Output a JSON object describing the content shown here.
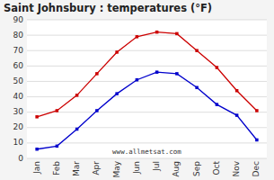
{
  "chart_data": {
    "type": "line",
    "title": "Saint Johnsbury : temperatures (°F)",
    "categories": [
      "Jan",
      "Feb",
      "Mar",
      "Apr",
      "May",
      "Jun",
      "Jul",
      "Aug",
      "Sep",
      "Oct",
      "Nov",
      "Dec"
    ],
    "series": [
      {
        "color": "#cc0000",
        "marker": "square",
        "values": [
          27,
          31,
          41,
          55,
          69,
          79,
          82,
          81,
          70,
          59,
          44,
          31
        ]
      },
      {
        "color": "#0000cc",
        "marker": "square",
        "values": [
          6,
          8,
          19,
          31,
          42,
          51,
          56,
          55,
          46,
          35,
          28,
          12
        ]
      }
    ],
    "ylim": [
      0,
      90
    ],
    "yticks": [
      0,
      10,
      20,
      30,
      40,
      50,
      60,
      70,
      80,
      90
    ],
    "grid": "y",
    "annotations": [
      "www.allmetsat.com"
    ]
  }
}
